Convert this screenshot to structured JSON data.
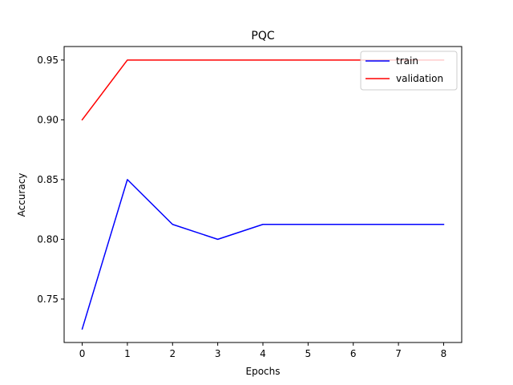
{
  "chart_data": {
    "type": "line",
    "title": "PQC",
    "xlabel": "Epochs",
    "ylabel": "Accuracy",
    "x": [
      0,
      1,
      2,
      3,
      4,
      5,
      6,
      7,
      8
    ],
    "xlim": [
      -0.4,
      8.4
    ],
    "ylim": [
      0.7137,
      0.9613
    ],
    "xticks": [
      0,
      1,
      2,
      3,
      4,
      5,
      6,
      7,
      8
    ],
    "xtick_labels": [
      "0",
      "1",
      "2",
      "3",
      "4",
      "5",
      "6",
      "7",
      "8"
    ],
    "yticks": [
      0.75,
      0.8,
      0.85,
      0.9,
      0.95
    ],
    "ytick_labels": [
      "0.75",
      "0.80",
      "0.85",
      "0.90",
      "0.95"
    ],
    "grid": false,
    "legend_position": "upper right",
    "series": [
      {
        "name": "train",
        "color": "#0000ff",
        "values": [
          0.725,
          0.85,
          0.8125,
          0.8,
          0.8125,
          0.8125,
          0.8125,
          0.8125,
          0.8125
        ]
      },
      {
        "name": "validation",
        "color": "#ff0000",
        "values": [
          0.9,
          0.95,
          0.95,
          0.95,
          0.95,
          0.95,
          0.95,
          0.95,
          0.95
        ]
      }
    ]
  }
}
